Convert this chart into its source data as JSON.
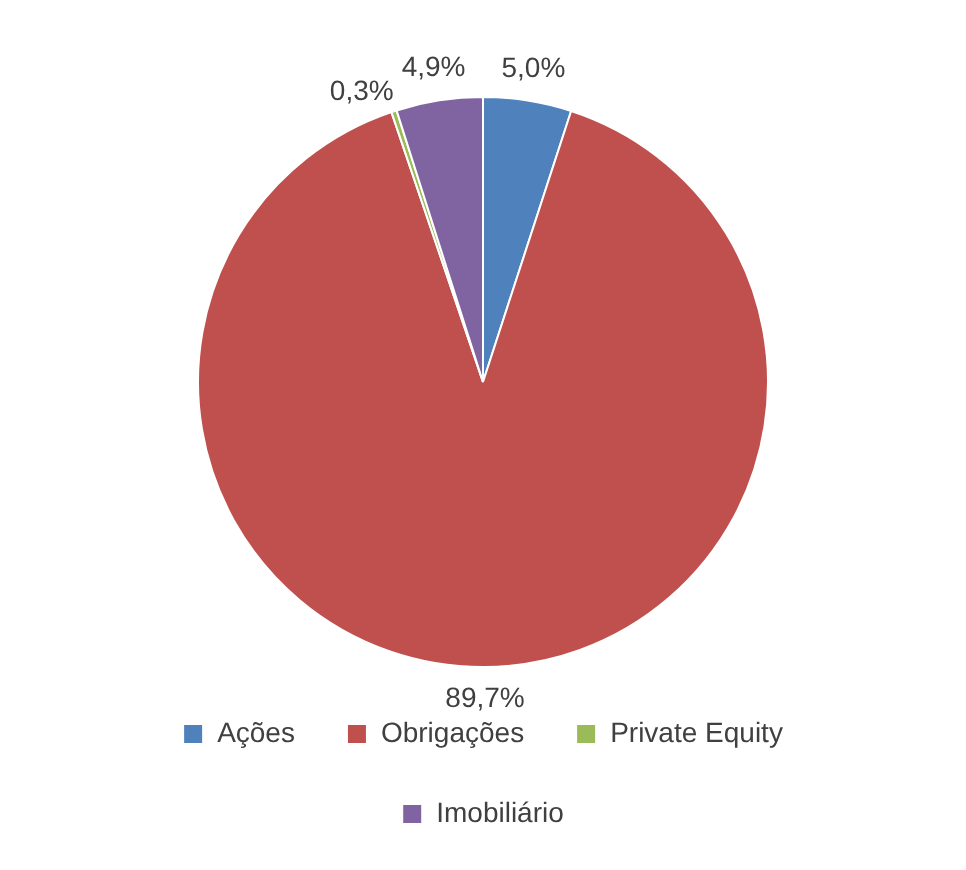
{
  "chart_data": {
    "type": "pie",
    "categories": [
      "Ações",
      "Obrigações",
      "Private Equity",
      "Imobiliário"
    ],
    "values": [
      5.0,
      89.7,
      0.3,
      4.9
    ],
    "colors": [
      "#4f81bd",
      "#c0504d",
      "#9bbb59",
      "#8064a2"
    ],
    "value_labels": [
      "5,0%",
      "89,7%",
      "0,3%",
      "4,9%"
    ],
    "legend": "bottom"
  }
}
